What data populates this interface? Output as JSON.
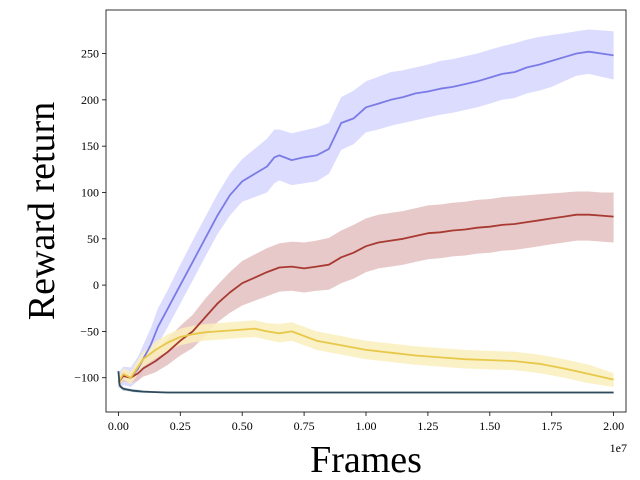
{
  "chart_data": {
    "type": "line",
    "title": "",
    "xlabel": "Frames",
    "ylabel": "Reward return",
    "x_offset_label": "1e7",
    "xlim": [
      -0.05,
      2.05
    ],
    "ylim": [
      -137,
      297
    ],
    "x_ticks": [
      0,
      0.25,
      0.5,
      0.75,
      1.0,
      1.25,
      1.5,
      1.75,
      2.0
    ],
    "x_tick_labels": [
      "0.00",
      "0.25",
      "0.50",
      "0.75",
      "1.00",
      "1.25",
      "1.50",
      "1.75",
      "2.00"
    ],
    "y_ticks": [
      -100,
      -50,
      0,
      50,
      100,
      150,
      200,
      250
    ],
    "y_tick_labels": [
      "−100",
      "−50",
      "0",
      "50",
      "100",
      "150",
      "200",
      "250"
    ],
    "grid": false,
    "legend": "none",
    "series": [
      {
        "color": "#7b7be6",
        "band_color": "#d6d6ff",
        "x": [
          0,
          0.02,
          0.05,
          0.08,
          0.1,
          0.13,
          0.16,
          0.2,
          0.25,
          0.3,
          0.35,
          0.4,
          0.45,
          0.5,
          0.55,
          0.6,
          0.63,
          0.65,
          0.7,
          0.75,
          0.8,
          0.85,
          0.9,
          0.95,
          1.0,
          1.05,
          1.1,
          1.15,
          1.2,
          1.25,
          1.3,
          1.35,
          1.4,
          1.45,
          1.5,
          1.55,
          1.6,
          1.65,
          1.7,
          1.75,
          1.8,
          1.85,
          1.9,
          1.95,
          2.0
        ],
        "y": [
          -105,
          -98,
          -100,
          -90,
          -80,
          -65,
          -45,
          -25,
          0,
          25,
          50,
          75,
          97,
          112,
          120,
          128,
          138,
          140,
          135,
          138,
          140,
          147,
          175,
          180,
          192,
          196,
          200,
          203,
          207,
          209,
          212,
          214,
          217,
          220,
          224,
          228,
          230,
          235,
          238,
          242,
          246,
          250,
          252,
          250,
          248
        ],
        "upper": [
          -95,
          -88,
          -89,
          -77,
          -65,
          -47,
          -25,
          -5,
          22,
          48,
          73,
          98,
          120,
          136,
          147,
          158,
          168,
          168,
          164,
          167,
          170,
          175,
          203,
          210,
          220,
          225,
          230,
          232,
          235,
          238,
          242,
          244,
          247,
          250,
          254,
          258,
          261,
          265,
          268,
          270,
          272,
          274,
          276,
          275,
          274
        ],
        "lower": [
          -112,
          -108,
          -110,
          -103,
          -94,
          -82,
          -64,
          -45,
          -20,
          5,
          30,
          55,
          75,
          90,
          95,
          100,
          110,
          113,
          108,
          110,
          112,
          120,
          146,
          152,
          165,
          168,
          172,
          175,
          178,
          181,
          184,
          186,
          189,
          192,
          196,
          200,
          202,
          207,
          210,
          214,
          220,
          226,
          228,
          225,
          222
        ]
      },
      {
        "color": "#a83a32",
        "band_color": "#e3bfbf",
        "x": [
          0,
          0.02,
          0.05,
          0.08,
          0.1,
          0.15,
          0.2,
          0.25,
          0.3,
          0.35,
          0.4,
          0.45,
          0.5,
          0.55,
          0.6,
          0.65,
          0.7,
          0.75,
          0.8,
          0.85,
          0.9,
          0.95,
          1.0,
          1.05,
          1.1,
          1.15,
          1.2,
          1.25,
          1.3,
          1.35,
          1.4,
          1.45,
          1.5,
          1.55,
          1.6,
          1.65,
          1.7,
          1.75,
          1.8,
          1.85,
          1.9,
          1.95,
          2.0
        ],
        "y": [
          -105,
          -98,
          -100,
          -95,
          -90,
          -82,
          -72,
          -60,
          -50,
          -35,
          -20,
          -8,
          2,
          8,
          14,
          19,
          20,
          18,
          20,
          22,
          30,
          35,
          42,
          46,
          48,
          50,
          53,
          56,
          57,
          59,
          60,
          62,
          63,
          65,
          66,
          68,
          70,
          72,
          74,
          76,
          76,
          75,
          74
        ],
        "upper": [
          -100,
          -93,
          -93,
          -86,
          -80,
          -70,
          -58,
          -44,
          -32,
          -15,
          0,
          14,
          26,
          33,
          40,
          45,
          47,
          46,
          48,
          51,
          59,
          65,
          72,
          76,
          78,
          80,
          83,
          86,
          87,
          89,
          90,
          92,
          93,
          95,
          96,
          97,
          98,
          99,
          100,
          101,
          101,
          100,
          100
        ],
        "lower": [
          -110,
          -104,
          -106,
          -103,
          -99,
          -94,
          -86,
          -76,
          -68,
          -55,
          -40,
          -30,
          -22,
          -17,
          -12,
          -7,
          -6,
          -8,
          -6,
          -5,
          2,
          7,
          14,
          18,
          20,
          22,
          25,
          28,
          29,
          31,
          32,
          34,
          35,
          37,
          38,
          40,
          42,
          44,
          46,
          48,
          48,
          47,
          46
        ]
      },
      {
        "color": "#e8c84a",
        "band_color": "#faeebc",
        "x": [
          0,
          0.02,
          0.05,
          0.08,
          0.1,
          0.15,
          0.2,
          0.25,
          0.3,
          0.35,
          0.4,
          0.45,
          0.5,
          0.55,
          0.6,
          0.65,
          0.7,
          0.75,
          0.8,
          0.9,
          1.0,
          1.1,
          1.2,
          1.3,
          1.4,
          1.5,
          1.6,
          1.7,
          1.8,
          1.9,
          2.0
        ],
        "y": [
          -105,
          -96,
          -100,
          -88,
          -80,
          -70,
          -62,
          -56,
          -53,
          -51,
          -50,
          -49,
          -48,
          -47,
          -50,
          -52,
          -50,
          -55,
          -60,
          -65,
          -70,
          -73,
          -76,
          -78,
          -80,
          -81,
          -82,
          -85,
          -90,
          -96,
          -102
        ],
        "upper": [
          -100,
          -90,
          -93,
          -80,
          -72,
          -61,
          -53,
          -47,
          -44,
          -42,
          -41,
          -40,
          -39,
          -38,
          -41,
          -42,
          -40,
          -45,
          -50,
          -55,
          -60,
          -63,
          -66,
          -68,
          -70,
          -71,
          -72,
          -75,
          -80,
          -86,
          -95
        ],
        "lower": [
          -110,
          -102,
          -107,
          -96,
          -88,
          -79,
          -71,
          -65,
          -62,
          -60,
          -59,
          -58,
          -57,
          -56,
          -59,
          -62,
          -60,
          -65,
          -70,
          -75,
          -80,
          -83,
          -86,
          -88,
          -90,
          -91,
          -92,
          -95,
          -100,
          -106,
          -110
        ]
      },
      {
        "color": "#2e4a5c",
        "band_color": "#b4c2cc",
        "x": [
          0,
          0.005,
          0.01,
          0.02,
          0.04,
          0.06,
          0.08,
          0.1,
          0.15,
          0.2,
          0.3,
          0.5,
          0.75,
          1.0,
          1.25,
          1.5,
          1.75,
          2.0
        ],
        "y": [
          -93,
          -108,
          -110,
          -112,
          -113,
          -114,
          -114.5,
          -115,
          -115.5,
          -116,
          -116,
          -116,
          -116,
          -116,
          -116,
          -116,
          -116,
          -116
        ],
        "upper": [
          -91,
          -106,
          -108,
          -110,
          -111.5,
          -112.5,
          -113,
          -113.8,
          -114.5,
          -115,
          -115,
          -115,
          -115,
          -115,
          -115,
          -115,
          -115,
          -115
        ],
        "lower": [
          -95,
          -110,
          -112,
          -114,
          -114.5,
          -115.5,
          -116,
          -116.2,
          -116.5,
          -117,
          -117,
          -117,
          -117,
          -117,
          -117,
          -117,
          -117,
          -117
        ]
      }
    ]
  }
}
